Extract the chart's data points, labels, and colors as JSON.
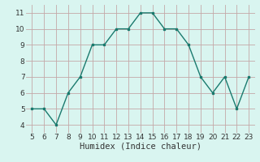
{
  "x": [
    5,
    6,
    7,
    8,
    9,
    10,
    11,
    12,
    13,
    14,
    15,
    16,
    17,
    18,
    19,
    20,
    21,
    22,
    23
  ],
  "y": [
    5,
    5,
    4,
    6,
    7,
    9,
    9,
    10,
    10,
    11,
    11,
    10,
    10,
    9,
    7,
    6,
    7,
    5,
    7
  ],
  "xlim": [
    4.5,
    23.5
  ],
  "ylim": [
    3.5,
    11.5
  ],
  "xticks": [
    5,
    6,
    7,
    8,
    9,
    10,
    11,
    12,
    13,
    14,
    15,
    16,
    17,
    18,
    19,
    20,
    21,
    22,
    23
  ],
  "yticks": [
    4,
    5,
    6,
    7,
    8,
    9,
    10,
    11
  ],
  "xlabel": "Humidex (Indice chaleur)",
  "line_color": "#1a7a6e",
  "marker": "s",
  "marker_size": 2,
  "bg_color": "#d9f5f0",
  "grid_color": "#c4a8a8",
  "tick_label_fontsize": 6.5,
  "xlabel_fontsize": 7.5
}
